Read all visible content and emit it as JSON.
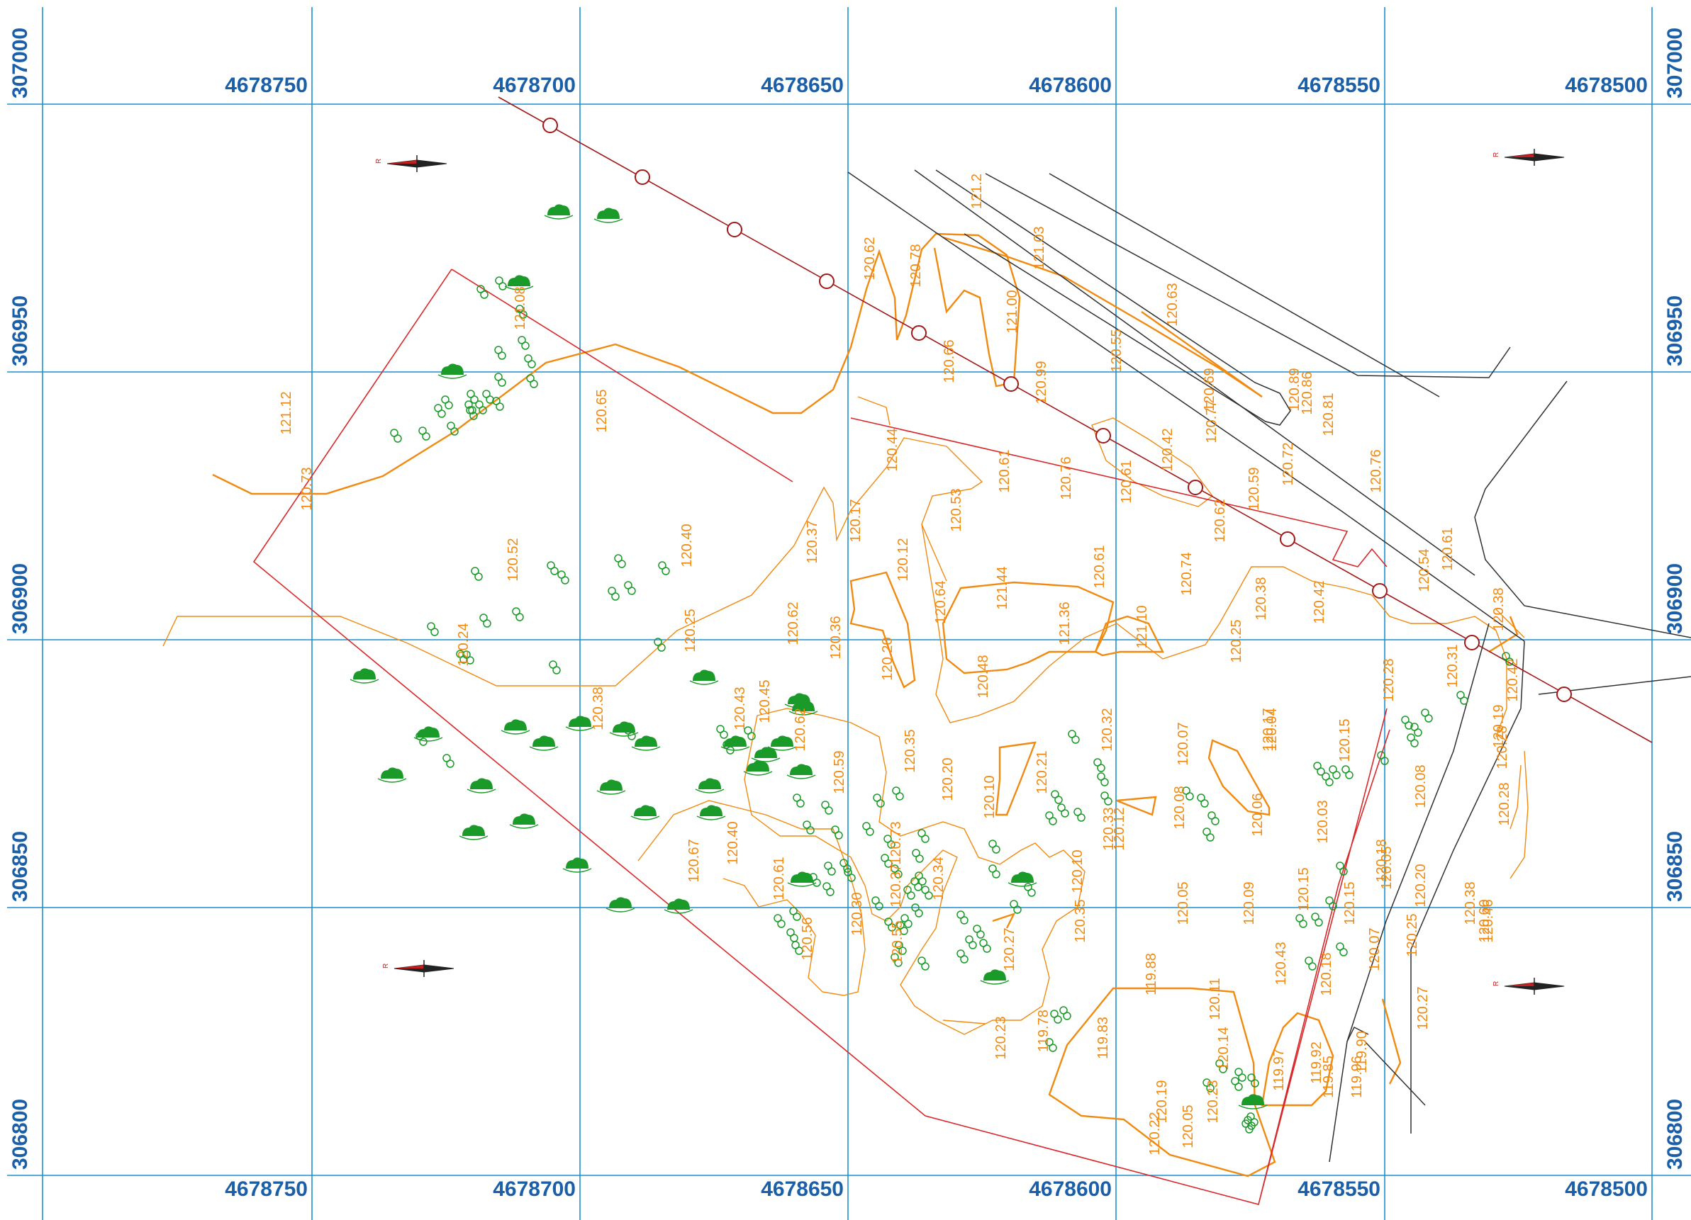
{
  "colors": {
    "grid": "#1e8fd0",
    "coord_text": "#1a5fa8",
    "contour": "#f08a10",
    "boundary": "#d8282a",
    "pipeline": "#a01818",
    "road": "#303030",
    "vegetation": "#1a9a28"
  },
  "grid": {
    "x_labels": [
      "4678750",
      "4678700",
      "4678650",
      "4678600",
      "4678550",
      "4678500"
    ],
    "y_labels": [
      "307000",
      "306950",
      "306900",
      "306850",
      "306800"
    ]
  },
  "north_arrow_label": "R",
  "elevations": [
    {
      "value": "121.12"
    },
    {
      "value": "120.73"
    },
    {
      "value": "121.08"
    },
    {
      "value": "120.65"
    },
    {
      "value": "120.52"
    },
    {
      "value": "120.40"
    },
    {
      "value": "120.24"
    },
    {
      "value": "120.25"
    },
    {
      "value": "120.38"
    },
    {
      "value": "120.43"
    },
    {
      "value": "120.45"
    },
    {
      "value": "120.62"
    },
    {
      "value": "120.36"
    },
    {
      "value": "120.37"
    },
    {
      "value": "120.17"
    },
    {
      "value": "120.62"
    },
    {
      "value": "120.78"
    },
    {
      "value": "121.2"
    },
    {
      "value": "121.03"
    },
    {
      "value": "121.00"
    },
    {
      "value": "120.66"
    },
    {
      "value": "120.99"
    },
    {
      "value": "120.55"
    },
    {
      "value": "120.63"
    },
    {
      "value": "120.69"
    },
    {
      "value": "120.89"
    },
    {
      "value": "120.77"
    },
    {
      "value": "120.86"
    },
    {
      "value": "120.81"
    },
    {
      "value": "120.44"
    },
    {
      "value": "120.61"
    },
    {
      "value": "120.76"
    },
    {
      "value": "120.61"
    },
    {
      "value": "120.42"
    },
    {
      "value": "120.72"
    },
    {
      "value": "120.59"
    },
    {
      "value": "120.62"
    },
    {
      "value": "120.76"
    },
    {
      "value": "120.53"
    },
    {
      "value": "120.12"
    },
    {
      "value": "120.64"
    },
    {
      "value": "121.44"
    },
    {
      "value": "121.36"
    },
    {
      "value": "120.61"
    },
    {
      "value": "121.10"
    },
    {
      "value": "120.74"
    },
    {
      "value": "120.38"
    },
    {
      "value": "120.42"
    },
    {
      "value": "120.54"
    },
    {
      "value": "120.61"
    },
    {
      "value": "120.38"
    },
    {
      "value": "120.20"
    },
    {
      "value": "120.48"
    },
    {
      "value": "120.25"
    },
    {
      "value": "120.28"
    },
    {
      "value": "120.31"
    },
    {
      "value": "120.42"
    },
    {
      "value": "120.19"
    },
    {
      "value": "120.28"
    },
    {
      "value": "120.62"
    },
    {
      "value": "120.59"
    },
    {
      "value": "120.35"
    },
    {
      "value": "120.20"
    },
    {
      "value": "120.10"
    },
    {
      "value": "120.21"
    },
    {
      "value": "120.32"
    },
    {
      "value": "120.07"
    },
    {
      "value": "120.04"
    },
    {
      "value": "120.17"
    },
    {
      "value": "120.15"
    },
    {
      "value": "120.08"
    },
    {
      "value": "120.28"
    },
    {
      "value": "120.40"
    },
    {
      "value": "120.67"
    },
    {
      "value": "120.61"
    },
    {
      "value": "120.73"
    },
    {
      "value": "120.37"
    },
    {
      "value": "120.34"
    },
    {
      "value": "120.33"
    },
    {
      "value": "120.12"
    },
    {
      "value": "120.08"
    },
    {
      "value": "120.06"
    },
    {
      "value": "120.03"
    },
    {
      "value": "120.05"
    },
    {
      "value": "120.20"
    },
    {
      "value": "120.38"
    },
    {
      "value": "120.46"
    },
    {
      "value": "120.60"
    },
    {
      "value": "120.56"
    },
    {
      "value": "120.30"
    },
    {
      "value": "120.55"
    },
    {
      "value": "120.35"
    },
    {
      "value": "120.27"
    },
    {
      "value": "120.10"
    },
    {
      "value": "120.05"
    },
    {
      "value": "120.09"
    },
    {
      "value": "120.15"
    },
    {
      "value": "120.15"
    },
    {
      "value": "120.25"
    },
    {
      "value": "120.18"
    },
    {
      "value": "120.43"
    },
    {
      "value": "120.18"
    },
    {
      "value": "120.07"
    },
    {
      "value": "119.88"
    },
    {
      "value": "120.11"
    },
    {
      "value": "120.27"
    },
    {
      "value": "120.23"
    },
    {
      "value": "119.78"
    },
    {
      "value": "119.83"
    },
    {
      "value": "120.14"
    },
    {
      "value": "119.97"
    },
    {
      "value": "119.92"
    },
    {
      "value": "119.90"
    },
    {
      "value": "119.96"
    },
    {
      "value": "120.19"
    },
    {
      "value": "120.23"
    },
    {
      "value": "119.85"
    },
    {
      "value": "120.22"
    },
    {
      "value": "120.05"
    }
  ]
}
